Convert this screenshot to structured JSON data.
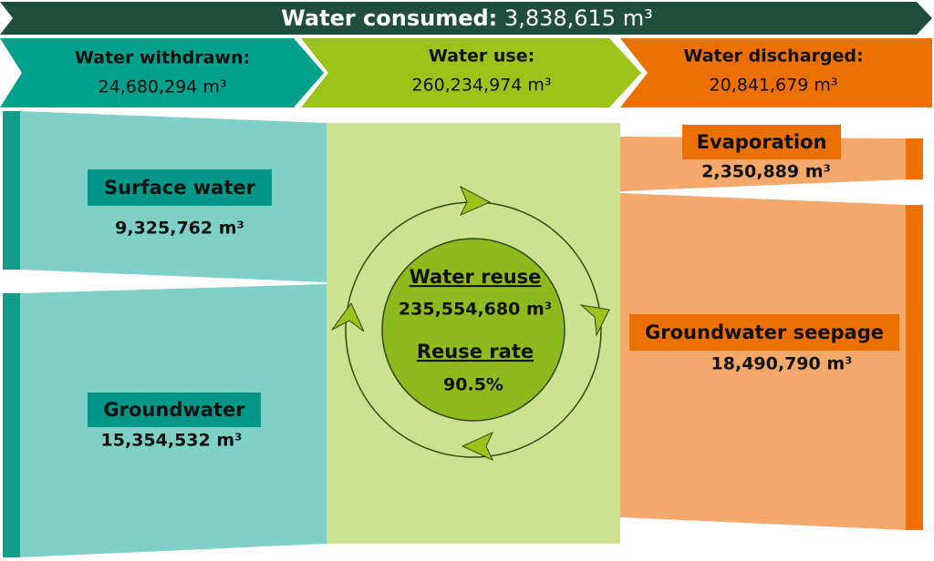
{
  "header": {
    "label": "Water consumed:",
    "value": "3,838,615 m³"
  },
  "stages": [
    {
      "label": "Water withdrawn:",
      "value": "24,680,294 m³"
    },
    {
      "label": "Water use:",
      "value": "260,234,974 m³"
    },
    {
      "label": "Water discharged:",
      "value": "20,841,679 m³"
    }
  ],
  "sources": [
    {
      "label": "Surface water",
      "value": "9,325,762 m³"
    },
    {
      "label": "Groundwater",
      "value": "15,354,532 m³"
    }
  ],
  "reuse": {
    "label": "Water reuse",
    "value": "235,554,680 m³",
    "rate_label": "Reuse rate",
    "rate_value": "90.5%"
  },
  "outputs": [
    {
      "label": "Evaporation",
      "value": "2,350,889 m³"
    },
    {
      "label": "Groundwater seepage",
      "value": "18,490,790 m³"
    }
  ]
}
